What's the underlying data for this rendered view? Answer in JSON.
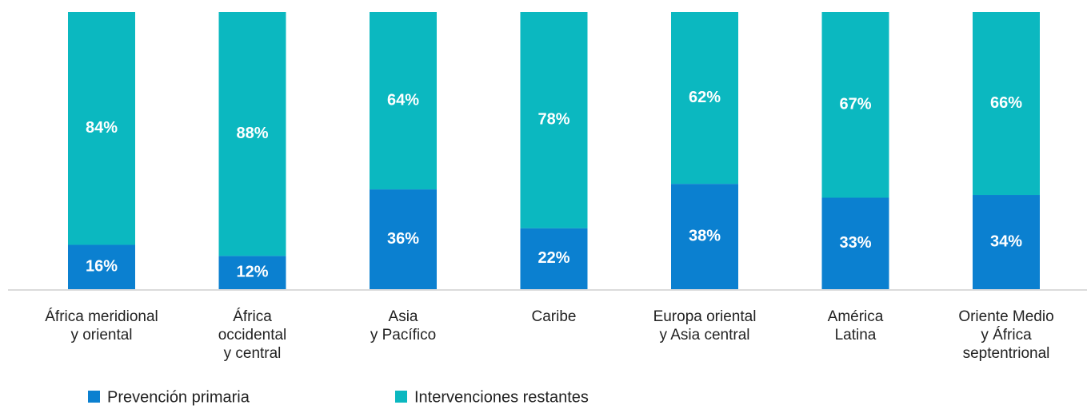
{
  "chart_data": {
    "type": "stacked_bar",
    "categories": [
      "África meridional\ny oriental",
      "África\noccidental\ny central",
      "Asia\ny Pacífico",
      "Caribe",
      "Europa oriental\ny Asia central",
      "América\nLatina",
      "Oriente Medio\ny África\nseptentrional"
    ],
    "series": [
      {
        "name": "Prevención primaria",
        "color": "#0b80d0",
        "values": [
          16,
          12,
          36,
          22,
          38,
          33,
          34
        ],
        "value_labels": [
          "16%",
          "12%",
          "36%",
          "22%",
          "38%",
          "33%",
          "34%"
        ]
      },
      {
        "name": "Intervenciones restantes",
        "color": "#0bb8c0",
        "values": [
          84,
          88,
          64,
          78,
          62,
          67,
          66
        ],
        "value_labels": [
          "84%",
          "88%",
          "64%",
          "78%",
          "62%",
          "67%",
          "66%"
        ]
      }
    ],
    "ylim": [
      0,
      100
    ],
    "legend": "bottom-left"
  }
}
